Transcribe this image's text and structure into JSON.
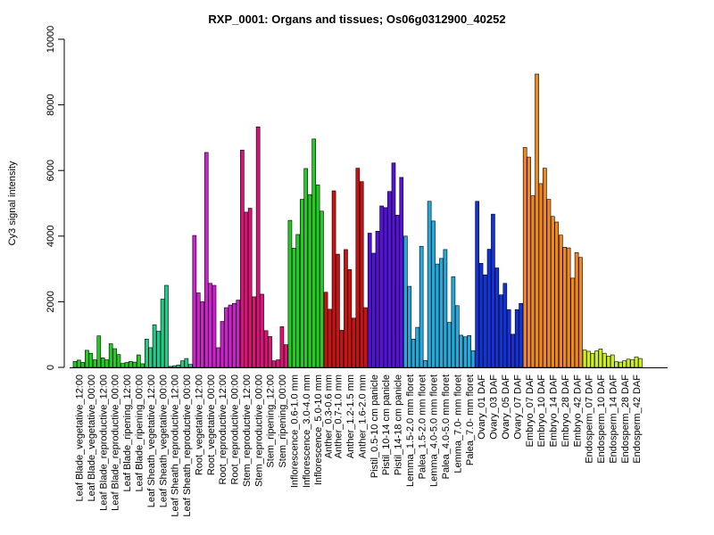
{
  "chart_data": {
    "type": "bar",
    "title": "RXP_0001: Organs and tissues; Os06g0312900_40252",
    "ylabel": "Cy3 signal intensity",
    "xlabel": "",
    "ylim": [
      0,
      10000
    ],
    "yticks": [
      0,
      2000,
      4000,
      6000,
      8000,
      10000
    ],
    "grid": false,
    "legend": "none",
    "groups": [
      {
        "label": "Leaf Blade_vegetative_12:00",
        "color": "#22cc22",
        "values": [
          180,
          220,
          150
        ]
      },
      {
        "label": "Leaf Blade_vegetative_00:00",
        "color": "#22cc22",
        "values": [
          520,
          430,
          230
        ]
      },
      {
        "label": "Leaf Blade_reproductive_12:00",
        "color": "#22cc22",
        "values": [
          960,
          290,
          230
        ]
      },
      {
        "label": "Leaf Blade_reproductive_00:00",
        "color": "#22cc22",
        "values": [
          720,
          570,
          390
        ]
      },
      {
        "label": "Leaf Blade_ripening_12:00",
        "color": "#22cc22",
        "values": [
          120,
          150,
          180
        ]
      },
      {
        "label": "Leaf Blade_ripening_00:00",
        "color": "#22cc22",
        "values": [
          160,
          380,
          110
        ]
      },
      {
        "label": "Leaf Sheath_vegetative_12:00",
        "color": "#22cc88",
        "values": [
          860,
          600,
          1300
        ]
      },
      {
        "label": "Leaf Sheath_vegetative_00:00",
        "color": "#22cc88",
        "values": [
          1100,
          2080,
          2500
        ]
      },
      {
        "label": "Leaf Sheath_reproductive_12:00",
        "color": "#22cc88",
        "values": [
          30,
          50,
          70
        ]
      },
      {
        "label": "Leaf Sheath_reproductive_00:00",
        "color": "#22cc88",
        "values": [
          200,
          270,
          90
        ]
      },
      {
        "label": "Root_vegetative_12:00",
        "color": "#cc22cc",
        "values": [
          4020,
          2270,
          2000
        ]
      },
      {
        "label": "Root_vegetative_00:00",
        "color": "#cc22cc",
        "values": [
          6550,
          2560,
          2500
        ]
      },
      {
        "label": "Root_reproductive_12:00",
        "color": "#cc22cc",
        "values": [
          600,
          1400,
          1820
        ]
      },
      {
        "label": "Root_reproductive_00:00",
        "color": "#cc22cc",
        "values": [
          1900,
          1950,
          2050
        ]
      },
      {
        "label": "Stem_reproductive_12:00",
        "color": "#dd1177",
        "values": [
          6620,
          4730,
          4850
        ]
      },
      {
        "label": "Stem_reproductive_00:00",
        "color": "#dd1177",
        "values": [
          2150,
          7330,
          2230
        ]
      },
      {
        "label": "Stem_ripening_12:00",
        "color": "#dd1177",
        "values": [
          1120,
          940,
          200
        ]
      },
      {
        "label": "Stem_ripening_00:00",
        "color": "#dd1177",
        "values": [
          230,
          1240,
          690
        ]
      },
      {
        "label": "Inflorescence_0.6-1.0 mm",
        "color": "#22cc22",
        "values": [
          4480,
          3630,
          4050
        ]
      },
      {
        "label": "Inflorescence_3.0-4.0 mm",
        "color": "#22cc22",
        "values": [
          5120,
          6060,
          5260
        ]
      },
      {
        "label": "Inflorescence_5.0-10 mm",
        "color": "#22cc22",
        "values": [
          6960,
          5560,
          4760
        ]
      },
      {
        "label": "Anther_0.3-0.6 mm",
        "color": "#cc1111",
        "values": [
          2290,
          1770
        ]
      },
      {
        "label": "Anther_0.7-1.0 mm",
        "color": "#cc1111",
        "values": [
          5380,
          3450,
          1130
        ]
      },
      {
        "label": "Anther_1.2-1.5 mm",
        "color": "#cc1111",
        "values": [
          3590,
          2980,
          1500
        ]
      },
      {
        "label": "Anther_1.6-2.0 mm",
        "color": "#cc1111",
        "values": [
          6070,
          5660,
          1820
        ]
      },
      {
        "label": "Pistil_0.5-10 cm panicle",
        "color": "#5511dd",
        "values": [
          4090,
          3480,
          4150
        ]
      },
      {
        "label": "Pistil_10-14 cm panicle",
        "color": "#5511dd",
        "values": [
          4920,
          4870,
          5360
        ]
      },
      {
        "label": "Pistil_14-18 cm panicle",
        "color": "#5511dd",
        "values": [
          6230,
          4640,
          5790
        ]
      },
      {
        "label": "Lemma_1.5-2.0 mm floret",
        "color": "#22aadd",
        "values": [
          4000,
          2470,
          860
        ]
      },
      {
        "label": "Palea_1.5-2.0 mm floret",
        "color": "#22aadd",
        "values": [
          1220,
          3690,
          210
        ]
      },
      {
        "label": "Lemma_4.0-5.0 mm floret",
        "color": "#22aadd",
        "values": [
          5060,
          4460,
          3150
        ]
      },
      {
        "label": "Palea_4.0-5.0 mm floret",
        "color": "#22aadd",
        "values": [
          3320,
          3590,
          1370
        ]
      },
      {
        "label": "Lemma_7.0- mm floret",
        "color": "#22aadd",
        "values": [
          2760,
          1880,
          980
        ]
      },
      {
        "label": "Palea_7.0- mm floret",
        "color": "#22aadd",
        "values": [
          930,
          970,
          510
        ]
      },
      {
        "label": "Ovary_01 DAF",
        "color": "#1133dd",
        "values": [
          5060,
          3170,
          2820
        ]
      },
      {
        "label": "Ovary_03 DAF",
        "color": "#1133dd",
        "values": [
          3600,
          4670,
          3030
        ]
      },
      {
        "label": "Ovary_05 DAF",
        "color": "#1133dd",
        "values": [
          2210,
          2560,
          1760
        ]
      },
      {
        "label": "Ovary_07 DAF",
        "color": "#1133dd",
        "values": [
          1010,
          1760,
          1950
        ]
      },
      {
        "label": "Embryo_07 DAF",
        "color": "#ee8822",
        "values": [
          6700,
          6410,
          5230
        ]
      },
      {
        "label": "Embryo_10 DAF",
        "color": "#ee8822",
        "values": [
          8940,
          5600,
          6070
        ]
      },
      {
        "label": "Embryo_14 DAF",
        "color": "#ee8822",
        "values": [
          5120,
          4600,
          4430
        ]
      },
      {
        "label": "Embryo_28 DAF",
        "color": "#ee8822",
        "values": [
          4030,
          3660,
          3640
        ]
      },
      {
        "label": "Embryo_42 DAF",
        "color": "#ee8822",
        "values": [
          2720,
          3500,
          3350
        ]
      },
      {
        "label": "Endosperm_07 DAF",
        "color": "#ccee22",
        "values": [
          530,
          490,
          430
        ]
      },
      {
        "label": "Endosperm_10 DAF",
        "color": "#ccee22",
        "values": [
          500,
          560,
          430
        ]
      },
      {
        "label": "Endosperm_14 DAF",
        "color": "#ccee22",
        "values": [
          340,
          380,
          170
        ]
      },
      {
        "label": "Endosperm_28 DAF",
        "color": "#ccee22",
        "values": [
          160,
          200,
          250
        ]
      },
      {
        "label": "Endosperm_42 DAF",
        "color": "#ccee22",
        "values": [
          230,
          320,
          270
        ]
      }
    ]
  }
}
